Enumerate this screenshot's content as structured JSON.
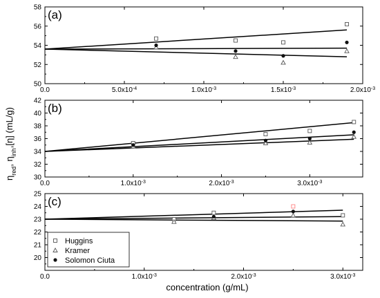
{
  "x_axis_title": "concentration (g/mL)",
  "y_axis_title": "ηred, ηinh,[η] (mL/g)",
  "legend": [
    {
      "name": "Huggins",
      "marker": "open-square"
    },
    {
      "name": "Kramer",
      "marker": "open-triangle"
    },
    {
      "name": "Solomon Ciuta",
      "marker": "filled-circle"
    }
  ],
  "colors": {
    "axis": "#000000",
    "marker_open": "#555555",
    "marker_filled": "#111111",
    "highlight_marker": "#ff8080"
  },
  "chart_data": [
    {
      "type": "scatter",
      "label": "(a)",
      "xlim": [
        0,
        0.002
      ],
      "ylim": [
        50,
        58
      ],
      "xticks": [
        0,
        0.0005,
        0.001,
        0.0015,
        0.002
      ],
      "xtick_labels": [
        "0.0",
        "5.0x10-4",
        "1.0x10-3",
        "1.5x10-3",
        "2.0x10-3"
      ],
      "yticks": [
        50,
        52,
        54,
        56,
        58
      ],
      "ytick_labels": [
        "50",
        "52",
        "54",
        "56",
        "58"
      ],
      "series": [
        {
          "name": "Huggins",
          "x": [
            0.0007,
            0.0012,
            0.0015,
            0.0019
          ],
          "y": [
            54.7,
            54.5,
            54.3,
            56.2
          ],
          "fit": [
            53.6,
            55.6
          ]
        },
        {
          "name": "Kramer",
          "x": [
            0.0007,
            0.0012,
            0.0015,
            0.0019
          ],
          "y": [
            53.8,
            52.8,
            52.2,
            53.4
          ],
          "fit": [
            53.6,
            52.8
          ]
        },
        {
          "name": "Solomon Ciuta",
          "x": [
            0.0007,
            0.0012,
            0.0015,
            0.0019
          ],
          "y": [
            54.0,
            53.4,
            52.9,
            54.3
          ],
          "fit": [
            53.6,
            53.7
          ]
        }
      ]
    },
    {
      "type": "scatter",
      "label": "(b)",
      "xlim": [
        0,
        0.0036
      ],
      "ylim": [
        30,
        42
      ],
      "xticks": [
        0,
        0.001,
        0.002,
        0.003
      ],
      "xtick_labels": [
        "0.0",
        "1.0x10-3",
        "2.0x10-3",
        "3.0x10-3"
      ],
      "yticks": [
        30,
        32,
        34,
        36,
        38,
        40,
        42
      ],
      "ytick_labels": [
        "30",
        "32",
        "34",
        "36",
        "38",
        "40",
        "42"
      ],
      "series": [
        {
          "name": "Huggins",
          "x": [
            0.001,
            0.0025,
            0.003,
            0.0035
          ],
          "y": [
            35.3,
            36.7,
            37.2,
            38.6
          ],
          "fit": [
            34.0,
            38.5
          ]
        },
        {
          "name": "Kramer",
          "x": [
            0.001,
            0.0025,
            0.003,
            0.0035
          ],
          "y": [
            34.8,
            35.3,
            35.4,
            36.3
          ],
          "fit": [
            34.0,
            35.9
          ]
        },
        {
          "name": "Solomon Ciuta",
          "x": [
            0.001,
            0.0025,
            0.003,
            0.0035
          ],
          "y": [
            35.0,
            35.7,
            36.0,
            37.0
          ],
          "fit": [
            34.0,
            36.6
          ]
        }
      ]
    },
    {
      "type": "scatter",
      "label": "(c)",
      "xlim": [
        0,
        0.0032
      ],
      "ylim": [
        19,
        25
      ],
      "xticks": [
        0,
        0.001,
        0.002,
        0.003
      ],
      "xtick_labels": [
        "0.0",
        "1.0x10-3",
        "2.0x10-3",
        "3.0x10-3"
      ],
      "yticks": [
        19,
        20,
        21,
        22,
        23,
        24,
        25
      ],
      "ytick_labels": [
        "",
        "20",
        "21",
        "22",
        "23",
        "24",
        "25"
      ],
      "series": [
        {
          "name": "Huggins",
          "x": [
            0.0013,
            0.0017,
            0.0025,
            0.003
          ],
          "y": [
            23.0,
            23.5,
            24.0,
            23.3
          ],
          "fit": [
            23.0,
            23.7
          ]
        },
        {
          "name": "Kramer",
          "x": [
            0.0013,
            0.0017,
            0.0025,
            0.003
          ],
          "y": [
            22.8,
            23.1,
            23.3,
            22.6
          ],
          "fit": [
            23.0,
            22.85
          ]
        },
        {
          "name": "Solomon Ciuta",
          "x": [
            0.0017,
            0.0025
          ],
          "y": [
            23.2,
            23.6
          ],
          "fit": [
            23.0,
            23.2
          ]
        }
      ]
    }
  ]
}
